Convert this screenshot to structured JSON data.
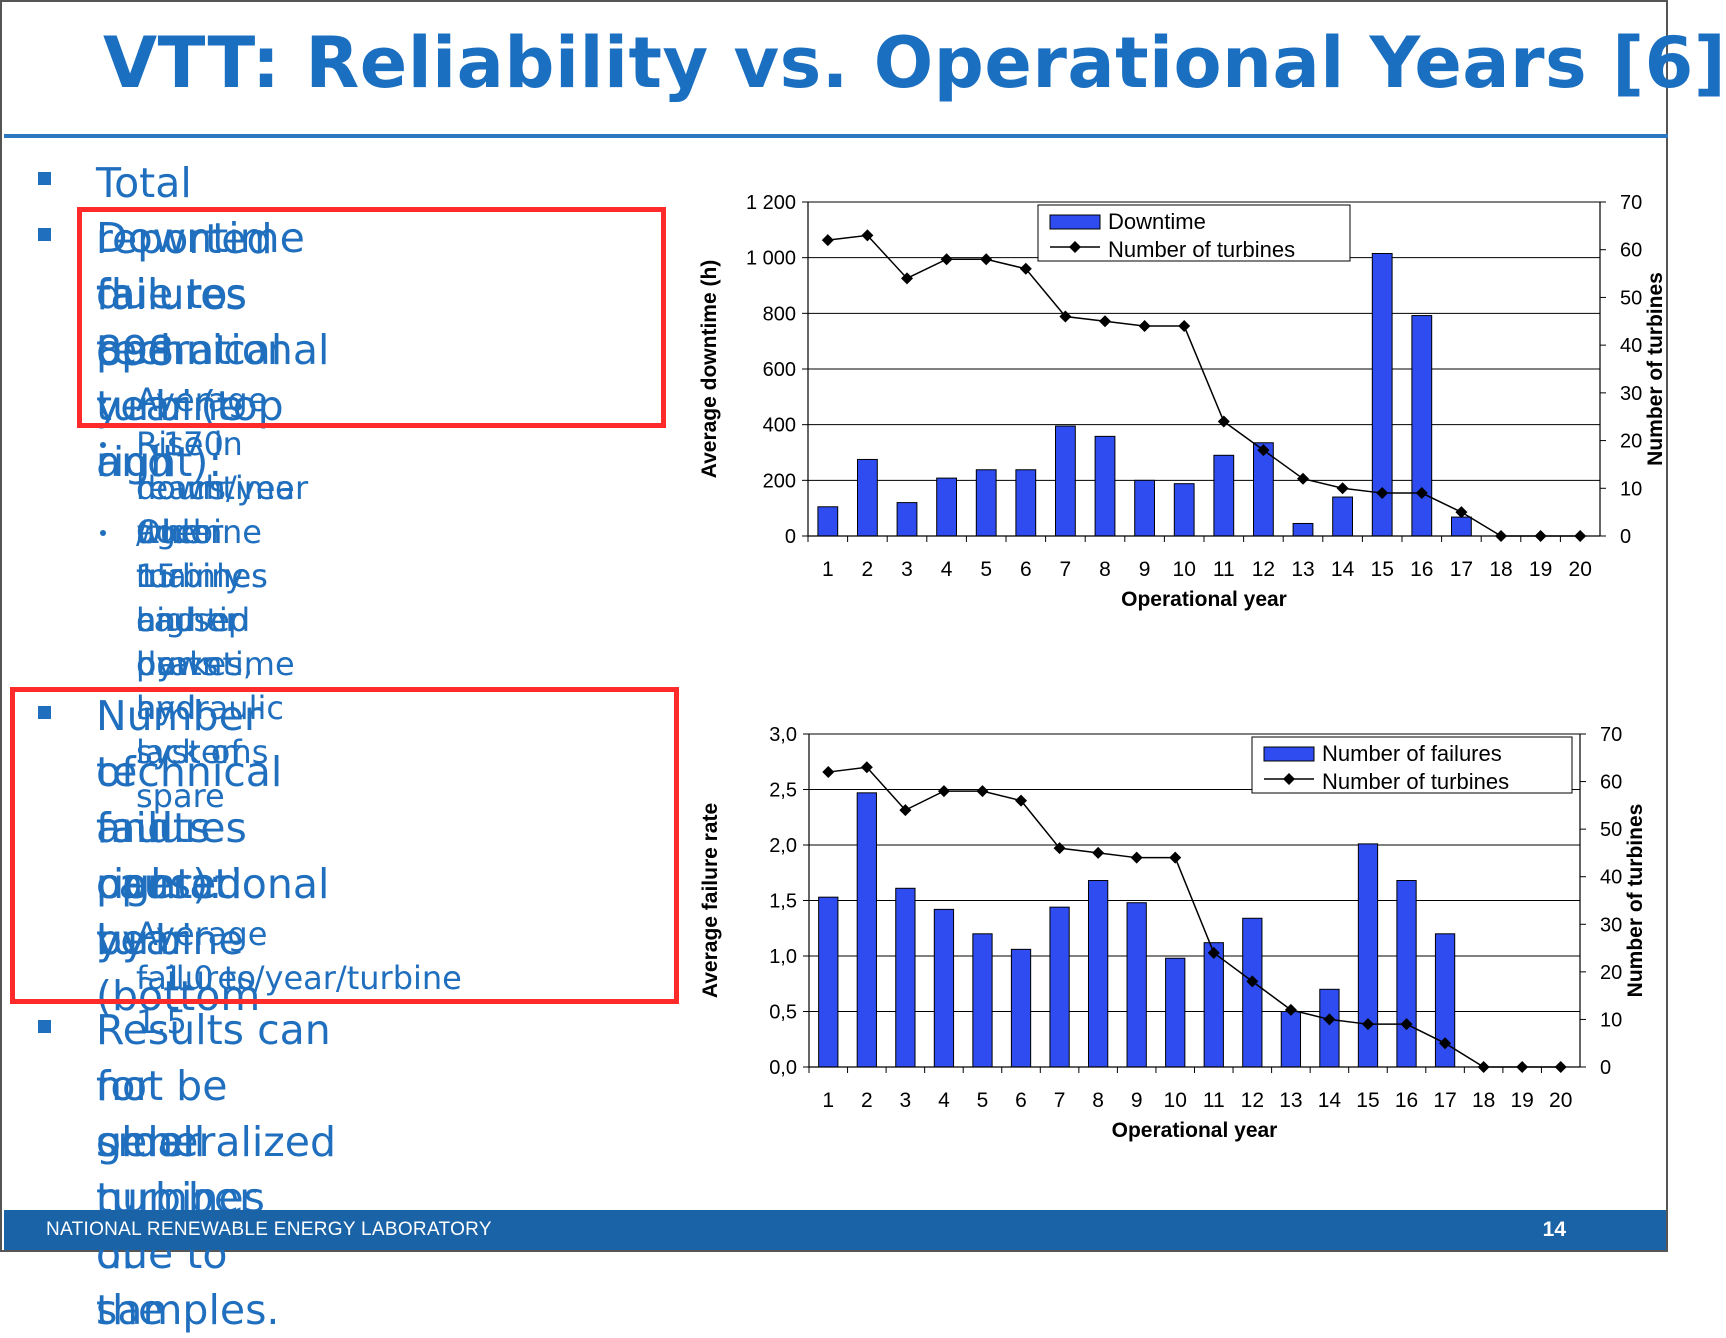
{
  "slide": {
    "title": "VTT: Reliability vs. Operational Years [6]",
    "footer_org": "NATIONAL RENEWABLE ENERGY LABORATORY",
    "page_number": "14",
    "accent_color": "#1f6fbe",
    "highlight_color": "#ff2a2a"
  },
  "bullets": {
    "b1": "Total reported failures 898",
    "b2_l1": "Downtime due to technical",
    "b2_l2": "failures per turbine and",
    "b2_l3": "operational year (top right):",
    "b2_s1": "Average ~170 hours/year /turbine",
    "b2_s2_l1": "Rise in downtime when turbines",
    "b2_s2_l2": "reach age 15",
    "b2_s3_l1": "Older turbines higher downtime",
    "b2_s3_l2": "mainly caused by hydraulic systems",
    "b2_s3_l3": "and tip brakes, and lack of spare",
    "b2_s3_l4": "parts",
    "b3_l1": "Number of faults caused by",
    "b3_l2": "technical failures per turbine",
    "b3_l3": "and operational year (bottom",
    "b3_l4": "right):",
    "b3_s1_l1": "Average ~1.0 to 1.5",
    "b3_s1_l2": "failures/year/turbine",
    "b4_l1": "Results can not be generalized",
    "b4_l2": "for older turbines due to the",
    "b4_l3": "small number of samples."
  },
  "chart_data": [
    {
      "type": "bar",
      "categories": [
        "1",
        "2",
        "3",
        "4",
        "5",
        "6",
        "7",
        "8",
        "9",
        "10",
        "11",
        "12",
        "13",
        "14",
        "15",
        "16",
        "17",
        "18",
        "19",
        "20"
      ],
      "series": [
        {
          "name": "Downtime",
          "kind": "bar",
          "axis": "left",
          "color": "#2f4cf0",
          "values": [
            105,
            275,
            120,
            208,
            238,
            238,
            395,
            358,
            200,
            188,
            290,
            335,
            45,
            140,
            1015,
            792,
            68,
            0,
            0,
            0
          ]
        },
        {
          "name": "Number of turbines",
          "kind": "line",
          "axis": "right",
          "color": "#000000",
          "values": [
            62,
            63,
            54,
            58,
            58,
            56,
            46,
            45,
            44,
            44,
            24,
            18,
            12,
            10,
            9,
            9,
            5,
            0,
            0,
            0
          ]
        }
      ],
      "xlabel": "Operational year",
      "ylabel": "Average downtime (h)",
      "y2label": "Number of turbines",
      "ylim": [
        0,
        1200
      ],
      "y2lim": [
        0,
        70
      ],
      "yticks": [
        "0",
        "200",
        "400",
        "600",
        "800",
        "1 000",
        "1 200"
      ],
      "y2ticks": [
        "0",
        "10",
        "20",
        "30",
        "40",
        "50",
        "60",
        "70"
      ],
      "grid": true,
      "legend": "top-center"
    },
    {
      "type": "bar",
      "categories": [
        "1",
        "2",
        "3",
        "4",
        "5",
        "6",
        "7",
        "8",
        "9",
        "10",
        "11",
        "12",
        "13",
        "14",
        "15",
        "16",
        "17",
        "18",
        "19",
        "20"
      ],
      "series": [
        {
          "name": "Number of failures",
          "kind": "bar",
          "axis": "left",
          "color": "#2f4cf0",
          "values": [
            1.53,
            2.47,
            1.61,
            1.42,
            1.2,
            1.06,
            1.44,
            1.68,
            1.48,
            0.98,
            1.12,
            1.34,
            0.5,
            0.7,
            2.01,
            1.68,
            1.2,
            0,
            0,
            0
          ]
        },
        {
          "name": "Number of turbines",
          "kind": "line",
          "axis": "right",
          "color": "#000000",
          "values": [
            62,
            63,
            54,
            58,
            58,
            56,
            46,
            45,
            44,
            44,
            24,
            18,
            12,
            10,
            9,
            9,
            5,
            0,
            0,
            0
          ]
        }
      ],
      "xlabel": "Operational year",
      "ylabel": "Average failure rate",
      "y2label": "Number of turbines",
      "ylim": [
        0,
        3
      ],
      "y2lim": [
        0,
        70
      ],
      "yticks": [
        "0,0",
        "0,5",
        "1,0",
        "1,5",
        "2,0",
        "2,5",
        "3,0"
      ],
      "y2ticks": [
        "0",
        "10",
        "20",
        "30",
        "40",
        "50",
        "60",
        "70"
      ],
      "grid": true,
      "legend": "top-right"
    }
  ]
}
